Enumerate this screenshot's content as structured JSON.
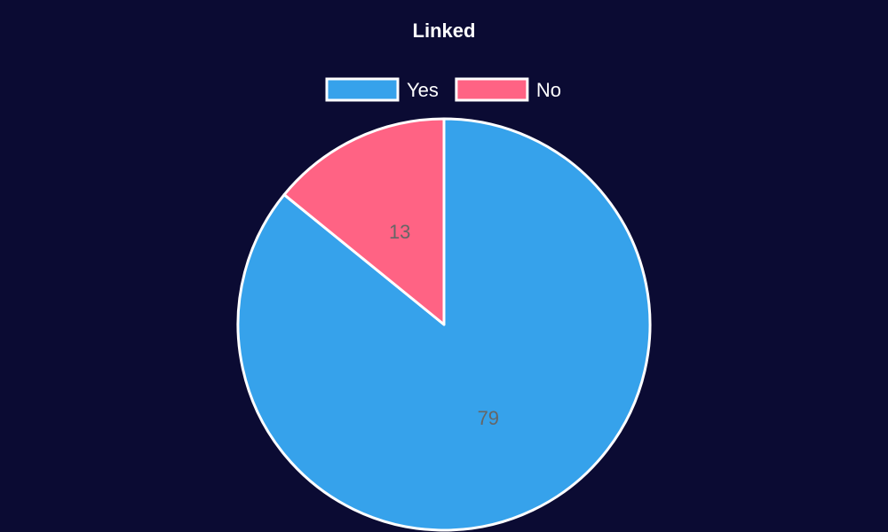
{
  "chart_data": {
    "type": "pie",
    "title": "Linked",
    "legend_position": "top",
    "slices": [
      {
        "label": "Yes",
        "value": 79,
        "color": "#36a2eb"
      },
      {
        "label": "No",
        "value": 13,
        "color": "#ff6384"
      }
    ],
    "background": "#0b0b33",
    "border_color": "#ffffff"
  }
}
